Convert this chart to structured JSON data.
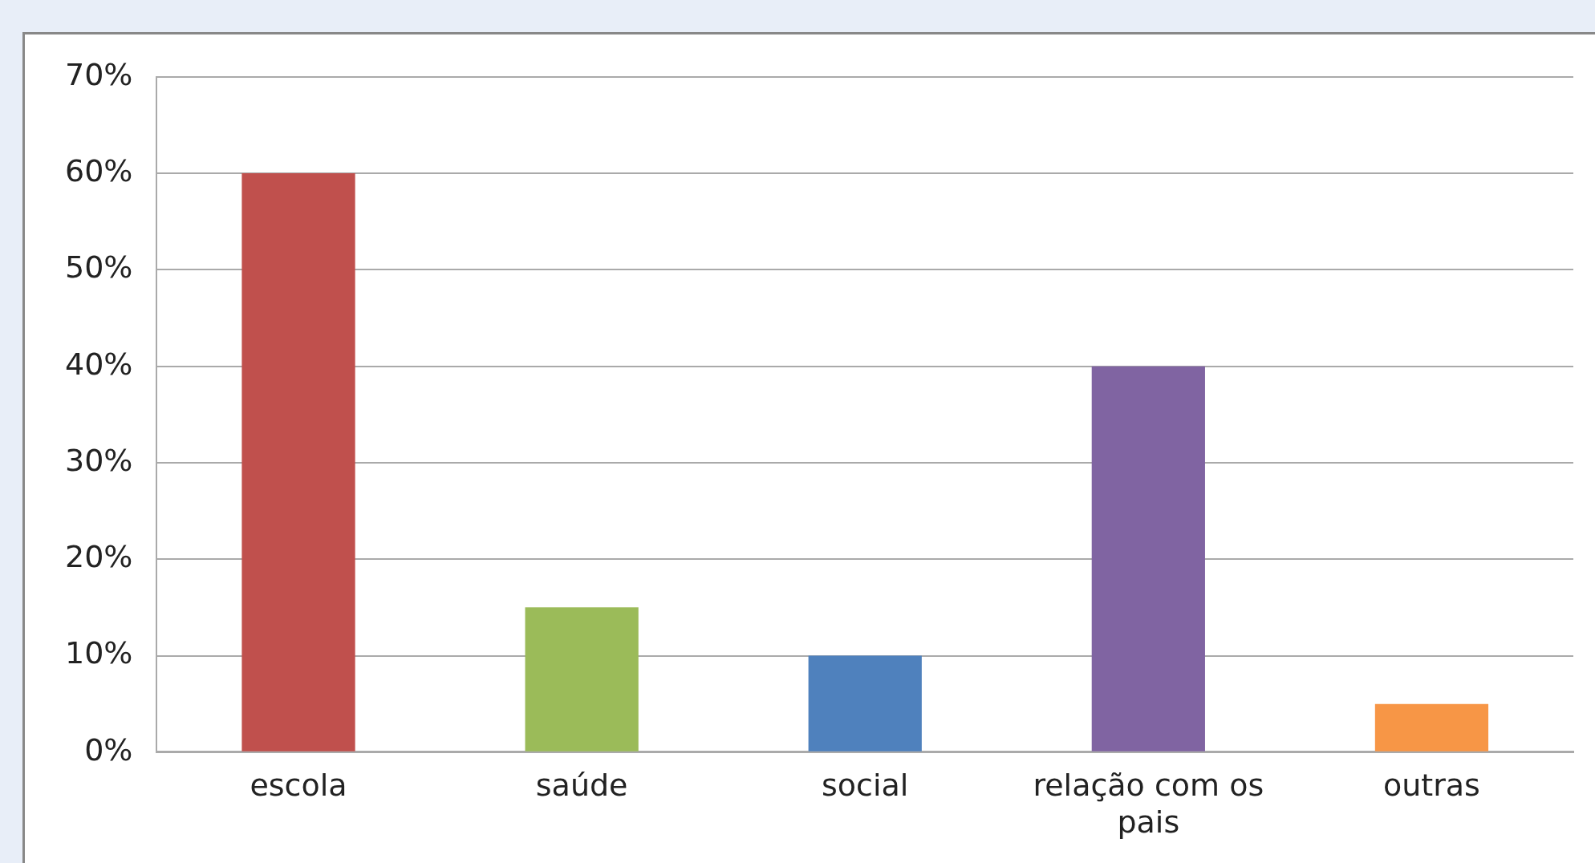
{
  "chart_data": {
    "type": "bar",
    "categories": [
      "escola",
      "saúde",
      "social",
      "relação com os pais",
      "outras"
    ],
    "values": [
      60,
      15,
      10,
      40,
      5
    ],
    "colors": [
      "#c0504d",
      "#9bbb59",
      "#4f81bd",
      "#8064a2",
      "#f79646"
    ],
    "ylim": [
      0,
      70
    ],
    "yticks": [
      {
        "value": 0,
        "label": "0%"
      },
      {
        "value": 10,
        "label": "10%"
      },
      {
        "value": 20,
        "label": "20%"
      },
      {
        "value": 30,
        "label": "30%"
      },
      {
        "value": 40,
        "label": "40%"
      },
      {
        "value": 50,
        "label": "50%"
      },
      {
        "value": 60,
        "label": "60%"
      },
      {
        "value": 70,
        "label": "70%"
      }
    ],
    "grid": "y",
    "legend": false
  }
}
